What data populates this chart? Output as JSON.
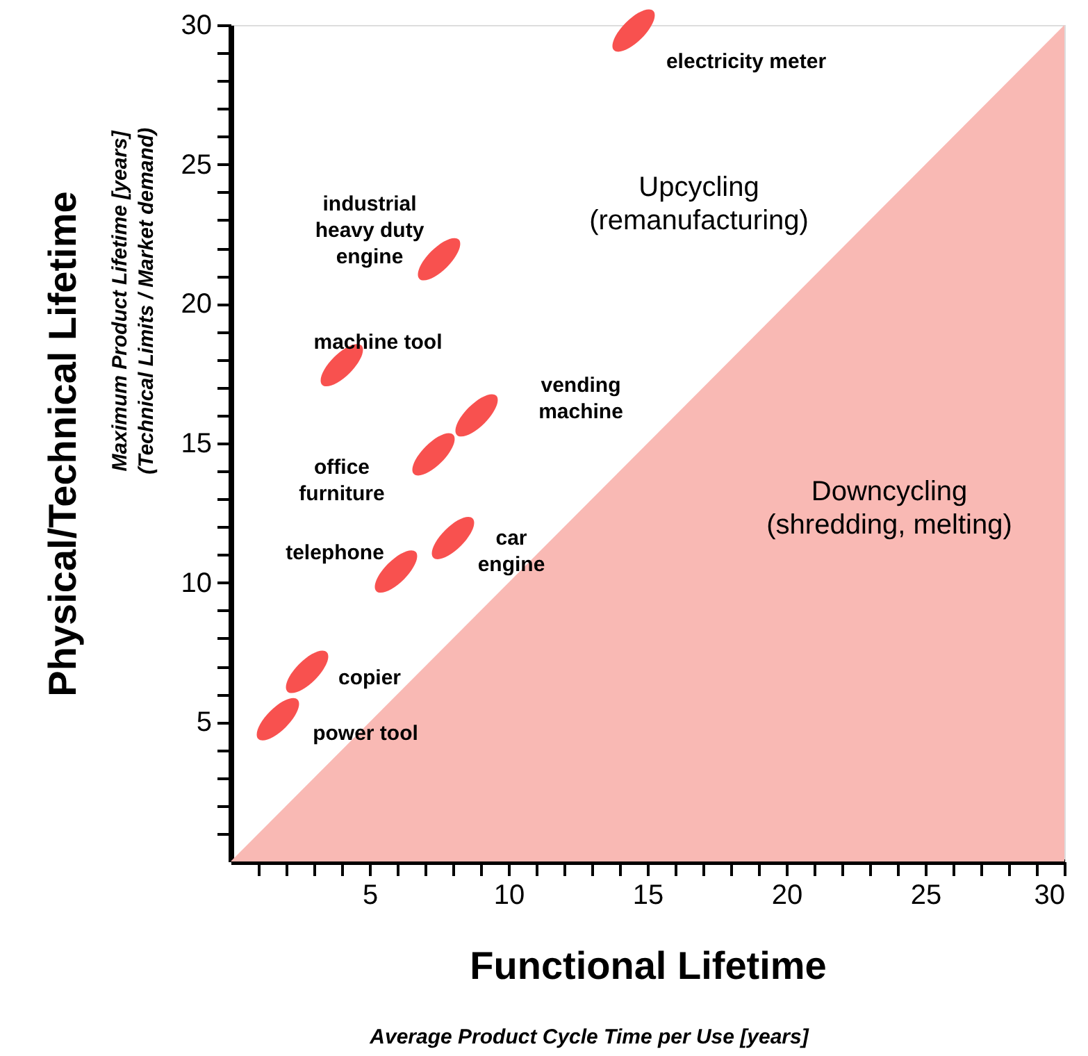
{
  "chart_data": {
    "type": "scatter",
    "xlabel": "Functional Lifetime",
    "ylabel": "Physical/Technical Lifetime",
    "xlim": [
      0,
      30
    ],
    "ylim": [
      0,
      30
    ],
    "xticks": [
      {
        "value": 1,
        "label": null
      },
      {
        "value": 2,
        "label": null
      },
      {
        "value": 3,
        "label": null
      },
      {
        "value": 4,
        "label": null
      },
      5,
      {
        "value": 6,
        "label": null
      },
      {
        "value": 7,
        "label": null
      },
      {
        "value": 8,
        "label": null
      },
      {
        "value": 9,
        "label": null
      },
      10,
      {
        "value": 11,
        "label": null
      },
      {
        "value": 12,
        "label": null
      },
      {
        "value": 13,
        "label": null
      },
      {
        "value": 14,
        "label": null
      },
      15,
      {
        "value": 16,
        "label": null
      },
      {
        "value": 17,
        "label": null
      },
      {
        "value": 18,
        "label": null
      },
      {
        "value": 19,
        "label": null
      },
      20,
      {
        "value": 21,
        "label": null
      },
      {
        "value": 22,
        "label": null
      },
      {
        "value": 23,
        "label": null
      },
      {
        "value": 24,
        "label": null
      },
      25,
      {
        "value": 26,
        "label": null
      },
      {
        "value": 27,
        "label": null
      },
      {
        "value": 28,
        "label": null
      },
      {
        "value": 29,
        "label": null
      },
      30
    ],
    "yticks": [
      {
        "value": 1,
        "label": null
      },
      {
        "value": 2,
        "label": null
      },
      {
        "value": 3,
        "label": null
      },
      {
        "value": 4,
        "label": null
      },
      5,
      {
        "value": 6,
        "label": null
      },
      {
        "value": 7,
        "label": null
      },
      {
        "value": 8,
        "label": null
      },
      {
        "value": 9,
        "label": null
      },
      10,
      {
        "value": 11,
        "label": null
      },
      {
        "value": 12,
        "label": null
      },
      {
        "value": 13,
        "label": null
      },
      {
        "value": 14,
        "label": null
      },
      15,
      {
        "value": 16,
        "label": null
      },
      {
        "value": 17,
        "label": null
      },
      {
        "value": 18,
        "label": null
      },
      {
        "value": 19,
        "label": null
      },
      20,
      {
        "value": 21,
        "label": null
      },
      {
        "value": 22,
        "label": null
      },
      {
        "value": 23,
        "label": null
      },
      {
        "value": 24,
        "label": null
      },
      25,
      {
        "value": 26,
        "label": null
      },
      {
        "value": 27,
        "label": null
      },
      {
        "value": 28,
        "label": null
      },
      {
        "value": 29,
        "label": null
      },
      30
    ],
    "grid": false,
    "series": [
      {
        "type": "area",
        "color": "#f9b9b4",
        "x": [
          0,
          30
        ],
        "values": [
          0,
          30
        ]
      },
      {
        "color": "#f8514f",
        "x": [
          14.5,
          7.5,
          4.0,
          8.85,
          7.3,
          5.95,
          8.0,
          2.75,
          1.7
        ],
        "values": [
          29.8,
          21.6,
          17.8,
          16.0,
          14.6,
          10.4,
          11.6,
          6.8,
          5.1
        ]
      }
    ],
    "annotations": [
      "Average Product Cycle Time per Use  [years]",
      "Maximum Product Lifetime  [years]\n(Technical Limits / Market demand)",
      "Upcycling\n(remanufacturing)",
      "Downcycling\n(shredding, melting)",
      {
        "text": "electricity meter",
        "x": 14.5,
        "y": 29.8
      },
      {
        "text": "industrial\nheavy duty\nengine",
        "x": 7.5,
        "y": 21.6
      },
      {
        "text": "machine tool",
        "x": 4.0,
        "y": 17.8
      },
      {
        "text": "vending\nmachine",
        "x": 8.85,
        "y": 16.0
      },
      {
        "text": "office\nfurniture",
        "x": 7.3,
        "y": 14.6
      },
      {
        "text": "telephone",
        "x": 5.95,
        "y": 10.4
      },
      {
        "text": "car\nengine",
        "x": 8.0,
        "y": 11.6
      },
      {
        "text": "copier",
        "x": 2.75,
        "y": 6.8
      },
      {
        "text": "power tool",
        "x": 1.7,
        "y": 5.1
      }
    ]
  }
}
